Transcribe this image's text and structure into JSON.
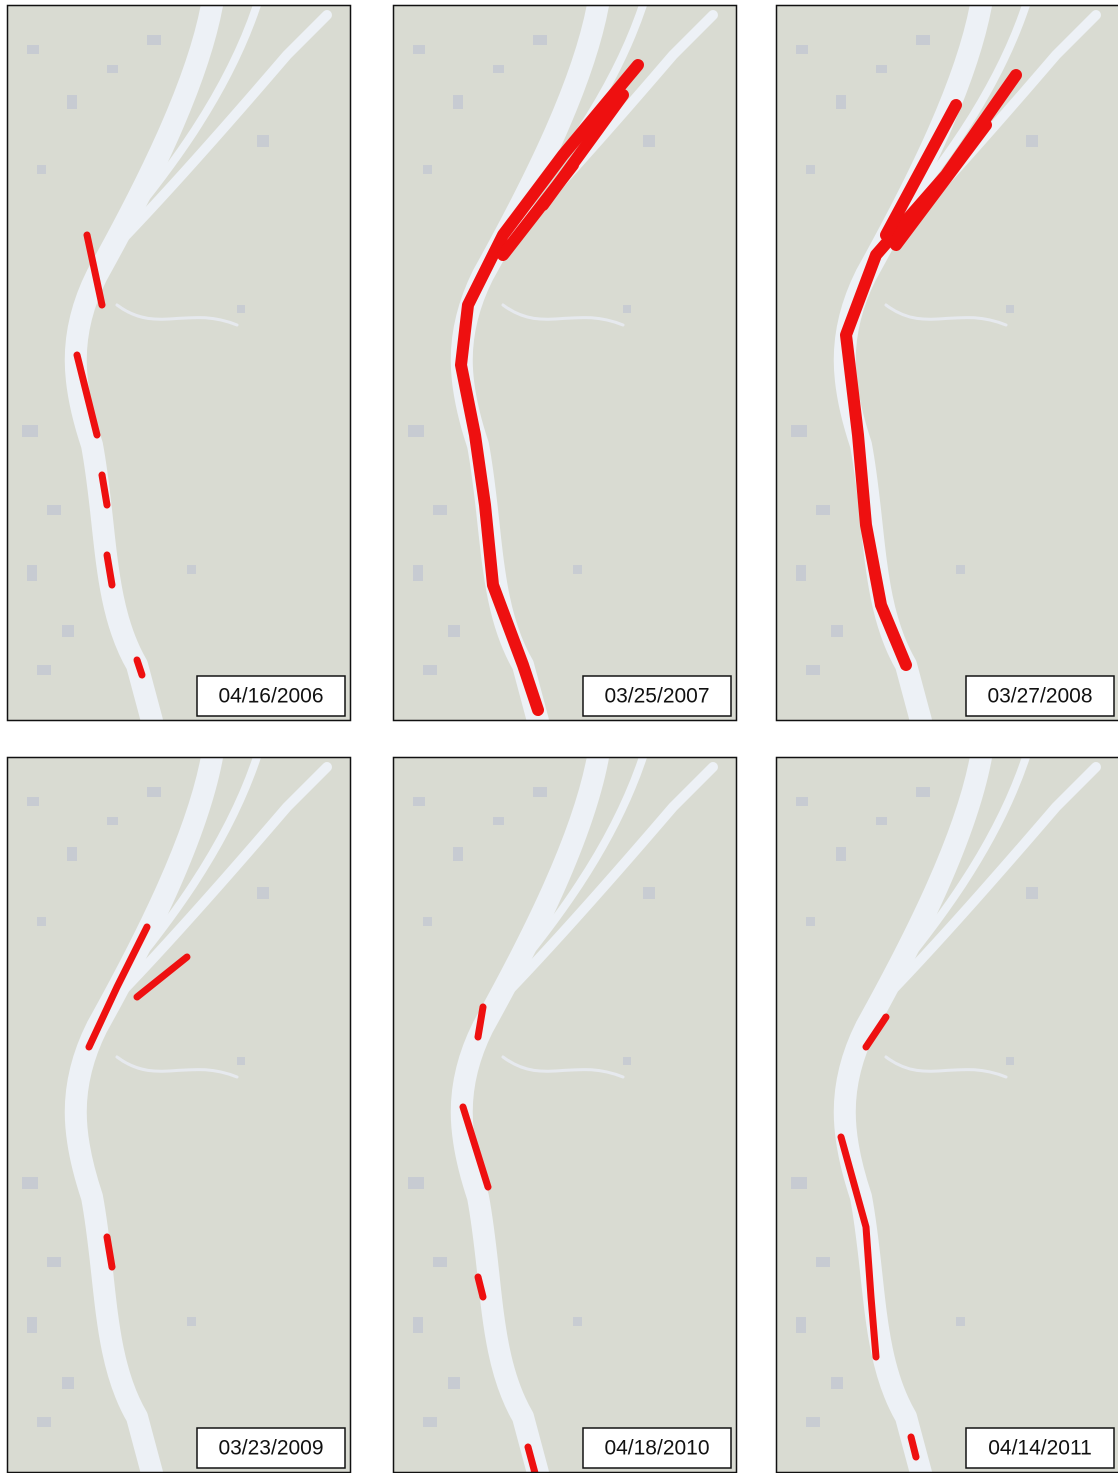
{
  "panels": [
    {
      "date": "04/16/2006"
    },
    {
      "date": "03/25/2007"
    },
    {
      "date": "03/27/2008"
    },
    {
      "date": "03/23/2009"
    },
    {
      "date": "04/18/2010"
    },
    {
      "date": "04/14/2011"
    }
  ]
}
